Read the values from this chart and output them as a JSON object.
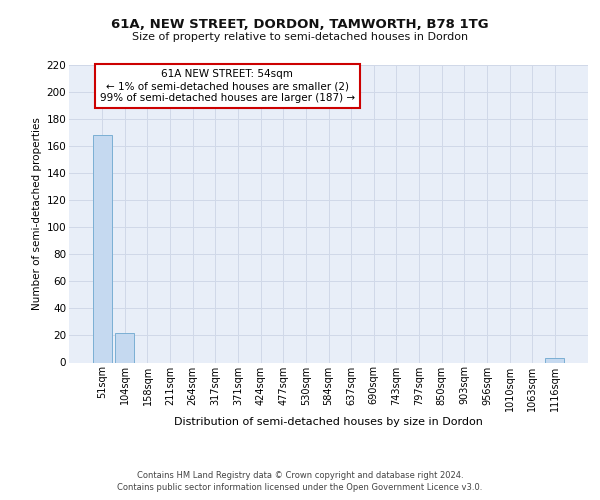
{
  "title_line1": "61A, NEW STREET, DORDON, TAMWORTH, B78 1TG",
  "title_line2": "Size of property relative to semi-detached houses in Dordon",
  "xlabel": "Distribution of semi-detached houses by size in Dordon",
  "ylabel": "Number of semi-detached properties",
  "footer_line1": "Contains HM Land Registry data © Crown copyright and database right 2024.",
  "footer_line2": "Contains public sector information licensed under the Open Government Licence v3.0.",
  "annotation_line1": "61A NEW STREET: 54sqm",
  "annotation_line2": "← 1% of semi-detached houses are smaller (2)",
  "annotation_line3": "99% of semi-detached houses are larger (187) →",
  "categories": [
    "51sqm",
    "104sqm",
    "158sqm",
    "211sqm",
    "264sqm",
    "317sqm",
    "371sqm",
    "424sqm",
    "477sqm",
    "530sqm",
    "584sqm",
    "637sqm",
    "690sqm",
    "743sqm",
    "797sqm",
    "850sqm",
    "903sqm",
    "956sqm",
    "1010sqm",
    "1063sqm",
    "1116sqm"
  ],
  "values": [
    168,
    22,
    0,
    0,
    0,
    0,
    0,
    0,
    0,
    0,
    0,
    0,
    0,
    0,
    0,
    0,
    0,
    0,
    0,
    0,
    3
  ],
  "bar_color": "#c5d9f0",
  "bar_edge_color": "#7bafd4",
  "annotation_box_edge_color": "#cc0000",
  "grid_color": "#d0d8e8",
  "bg_color": "#e8eef8",
  "ylim": [
    0,
    220
  ],
  "yticks": [
    0,
    20,
    40,
    60,
    80,
    100,
    120,
    140,
    160,
    180,
    200,
    220
  ],
  "title_fontsize": 9.5,
  "subtitle_fontsize": 8,
  "ylabel_fontsize": 7.5,
  "xlabel_fontsize": 8,
  "tick_fontsize": 7,
  "annotation_fontsize": 7.5,
  "footer_fontsize": 6
}
